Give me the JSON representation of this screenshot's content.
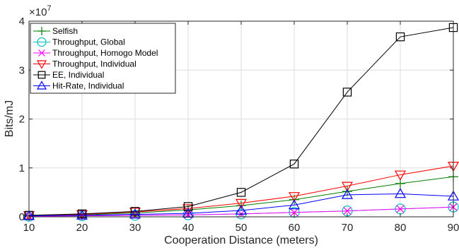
{
  "chart_data": {
    "type": "line",
    "title": "",
    "xlabel": "Cooperation Distance (meters)",
    "ylabel": "Bits/mJ",
    "y_exponent_label": "×10",
    "y_exponent_power": "7",
    "x": [
      10,
      20,
      30,
      40,
      50,
      60,
      70,
      80,
      90
    ],
    "xlim": [
      10,
      90
    ],
    "ylim": [
      0,
      40000000
    ],
    "x_ticks": [
      10,
      20,
      30,
      40,
      50,
      60,
      70,
      80,
      90
    ],
    "y_ticks": [
      0,
      10000000,
      20000000,
      30000000,
      40000000
    ],
    "y_tick_labels": [
      "0",
      "1",
      "2",
      "3",
      "4"
    ],
    "grid": true,
    "legend_position": "top-left",
    "series": [
      {
        "name": "Selfish",
        "color": "#007f00",
        "marker": "plus",
        "values": [
          200000,
          400000,
          800000,
          1400000,
          2300000,
          3500000,
          5200000,
          6800000,
          8200000
        ]
      },
      {
        "name": "Throughput, Global",
        "color": "#00bfbf",
        "marker": "circle",
        "values": [
          100000,
          200000,
          300000,
          400000,
          600000,
          900000,
          1200000,
          1600000,
          2000000
        ]
      },
      {
        "name": "Throughput, Homogo Model",
        "color": "#ff00ff",
        "marker": "x",
        "values": [
          100000,
          200000,
          300000,
          400000,
          600000,
          900000,
          1200000,
          1600000,
          2000000
        ]
      },
      {
        "name": "Throughput, Individual",
        "color": "#ff0000",
        "marker": "triangle-down",
        "values": [
          300000,
          500000,
          1000000,
          1700000,
          2800000,
          4200000,
          6300000,
          8600000,
          10400000
        ]
      },
      {
        "name": "EE, Individual",
        "color": "#000000",
        "marker": "square",
        "values": [
          300000,
          600000,
          1100000,
          2100000,
          5000000,
          10800000,
          25500000,
          36800000,
          38700000
        ]
      },
      {
        "name": "Hit-Rate, Individual",
        "color": "#0000ff",
        "marker": "triangle-up",
        "values": [
          200000,
          300000,
          500000,
          700000,
          1300000,
          2400000,
          4500000,
          4700000,
          4200000
        ]
      }
    ]
  }
}
